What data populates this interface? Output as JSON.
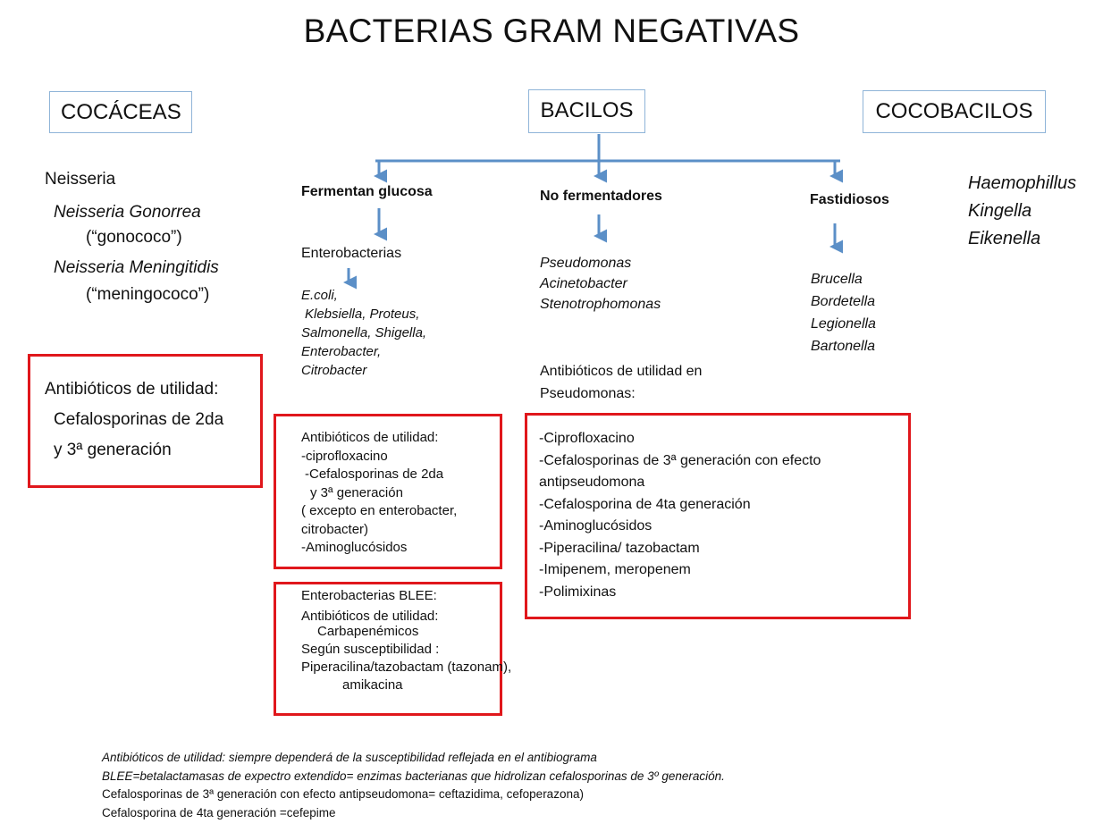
{
  "title": "BACTERIAS GRAM NEGATIVAS",
  "headers": {
    "cocaceas": "COCÁCEAS",
    "bacilos": "BACILOS",
    "cocobacilos": "COCOBACILOS"
  },
  "cocaceas": {
    "genus": "Neisseria",
    "species1": "Neisseria Gonorrea",
    "species1_common": "(“gonococo”)",
    "species2": "Neisseria Meningitidis",
    "species2_common": "(“meningococo”)",
    "antibiotics": [
      "Antibióticos de utilidad:",
      "Cefalosporinas de 2da",
      "y 3ª generación"
    ]
  },
  "fermentan": {
    "label": "Fermentan glucosa",
    "group": "Enterobacterias",
    "species": [
      "E.coli,",
      "Klebsiella, Proteus,",
      "Salmonella, Shigella,",
      "Enterobacter,",
      "Citrobacter"
    ],
    "antibiotics": [
      "Antibióticos de utilidad:",
      "-ciprofloxacino",
      "-Cefalosporinas de 2da",
      "y 3ª generación",
      "( excepto en enterobacter,",
      "citrobacter)",
      "-Aminoglucósidos"
    ],
    "blee": {
      "title": "Enterobacterias BLEE:",
      "line1": "Antibióticos de utilidad:",
      "line2": "Carbapenémicos",
      "line3": "Según susceptibilidad :",
      "line4": "Piperacilina/tazobactam (tazonam),",
      "line5": "amikacina"
    }
  },
  "nofermentadores": {
    "label": "No fermentadores",
    "species": [
      "Pseudomonas",
      "Acinetobacter",
      "Stenotrophomonas"
    ],
    "antibiotics_title": [
      "Antibióticos de utilidad en",
      "Pseudomonas:"
    ],
    "antibiotics": [
      "-Ciprofloxacino",
      "-Cefalosporinas de 3ª generación con efecto",
      "antipseudomona",
      "-Cefalosporina de 4ta generación",
      "-Aminoglucósidos",
      "-Piperacilina/ tazobactam",
      "-Imipenem, meropenem",
      "-Polimixinas"
    ]
  },
  "fastidiosos": {
    "label": "Fastidiosos",
    "species": [
      "Brucella",
      "Bordetella",
      "Legionella",
      "Bartonella"
    ]
  },
  "cocobacilos": {
    "species": [
      "Haemophillus",
      "Kingella",
      "Eikenella"
    ]
  },
  "notes": [
    "Antibióticos de utilidad: siempre dependerá de la susceptibilidad reflejada en el antibiograma",
    "BLEE=betalactamasas de expectro extendido= enzimas bacterianas que hidrolizan cefalosporinas de 3º generación.",
    "Cefalosporinas de 3ª generación con efecto  antipseudomona= ceftazidima, cefoperazona)",
    "Cefalosporina de 4ta generación =cefepime"
  ],
  "colors": {
    "arrow": "#5b8fc7",
    "box_border": "#e0171c",
    "header_border": "#8fb4d8"
  }
}
